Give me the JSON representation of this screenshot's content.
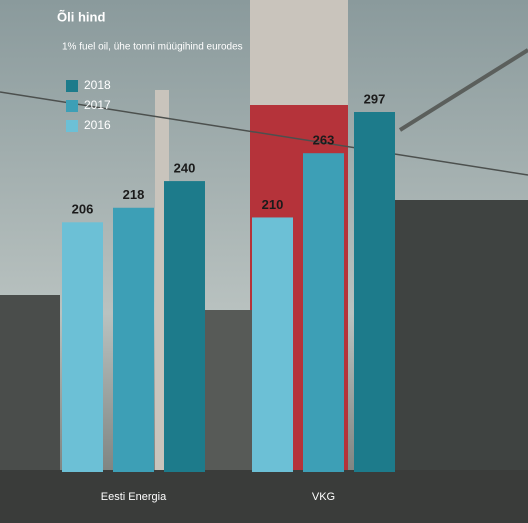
{
  "chart_data": {
    "type": "bar",
    "title": "Õli hind",
    "subtitle": "1% fuel oil, ühe tonni müügihind eurodes",
    "categories": [
      "Eesti Energia",
      "VKG"
    ],
    "series": [
      {
        "name": "2016",
        "color": "#6cc0d6",
        "values": [
          206,
          210
        ]
      },
      {
        "name": "2017",
        "color": "#3d9fb6",
        "values": [
          218,
          263
        ]
      },
      {
        "name": "2018",
        "color": "#1d7b8b",
        "values": [
          240,
          297
        ]
      }
    ]
  }
}
